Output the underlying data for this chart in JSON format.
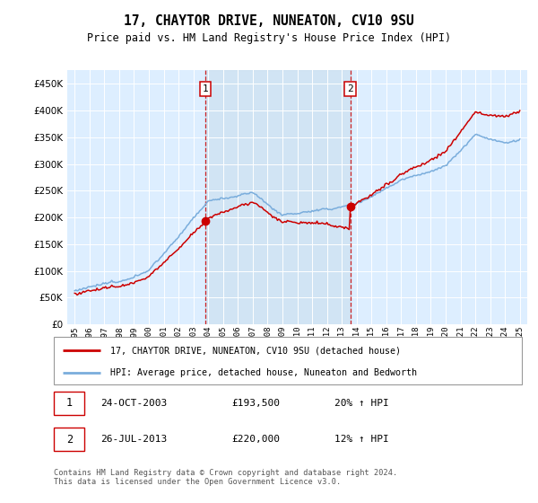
{
  "title": "17, CHAYTOR DRIVE, NUNEATON, CV10 9SU",
  "subtitle": "Price paid vs. HM Land Registry's House Price Index (HPI)",
  "ylim": [
    0,
    475000
  ],
  "ytick_vals": [
    0,
    50000,
    100000,
    150000,
    200000,
    250000,
    300000,
    350000,
    400000,
    450000
  ],
  "hpi_color": "#7aaddc",
  "price_color": "#cc0000",
  "bg_plot": "#ddeeff",
  "bg_span_color": "#cce0f0",
  "marker1_year": 2003.82,
  "marker2_year": 2013.57,
  "marker1_price": 193500,
  "marker2_price": 220000,
  "legend_label1": "17, CHAYTOR DRIVE, NUNEATON, CV10 9SU (detached house)",
  "legend_label2": "HPI: Average price, detached house, Nuneaton and Bedworth",
  "note1_label": "1",
  "note1_date": "24-OCT-2003",
  "note1_price": "£193,500",
  "note1_hpi": "20% ↑ HPI",
  "note2_label": "2",
  "note2_date": "26-JUL-2013",
  "note2_price": "£220,000",
  "note2_hpi": "12% ↑ HPI",
  "footer": "Contains HM Land Registry data © Crown copyright and database right 2024.\nThis data is licensed under the Open Government Licence v3.0."
}
